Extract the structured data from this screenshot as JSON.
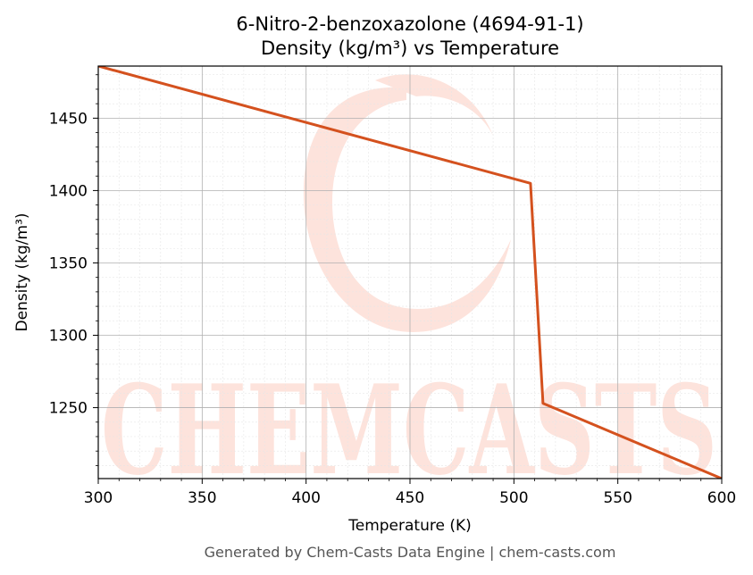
{
  "chart_data": {
    "type": "line",
    "title": "6-Nitro-2-benzoxazolone (4694-91-1)",
    "subtitle": "Density (kg/m³) vs Temperature",
    "xlabel": "Temperature (K)",
    "ylabel": "Density (kg/m³)",
    "xlim": [
      300,
      600
    ],
    "ylim": [
      1201,
      1486
    ],
    "x_ticks": [
      300,
      350,
      400,
      450,
      500,
      550,
      600
    ],
    "y_ticks": [
      1250,
      1300,
      1350,
      1400,
      1450
    ],
    "grid": true,
    "series": [
      {
        "color": "#d4511e",
        "x": [
          300,
          508,
          514,
          600
        ],
        "y": [
          1486,
          1405,
          1253,
          1201
        ]
      }
    ]
  },
  "watermark": {
    "text": "CHEMCASTS",
    "color": "#fde3dc"
  },
  "footer": "Generated by Chem-Casts Data Engine | chem-casts.com"
}
